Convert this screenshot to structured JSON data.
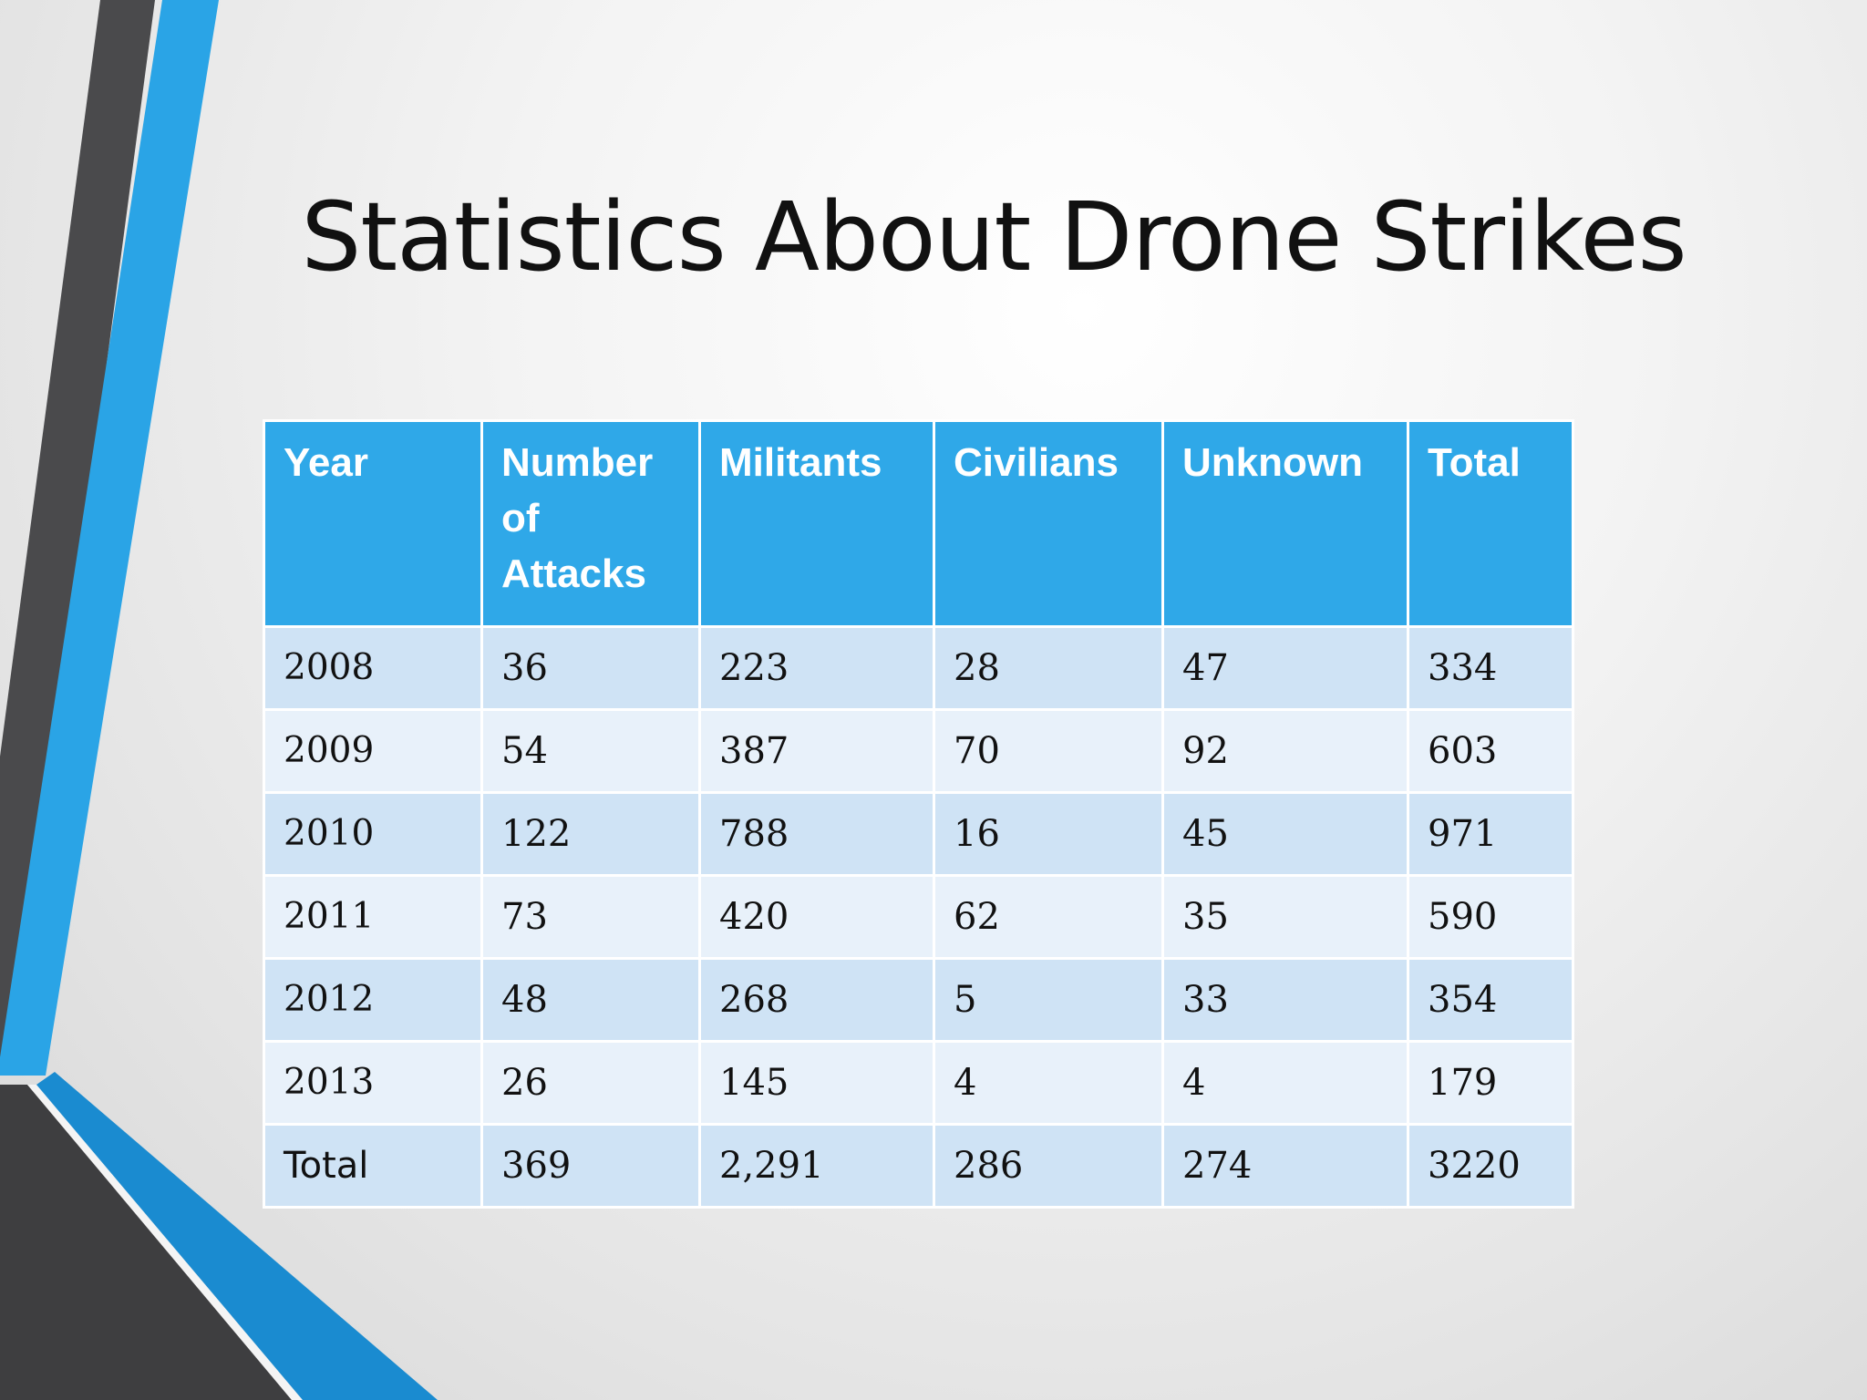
{
  "slide": {
    "title": "Statistics About Drone Strikes",
    "colors": {
      "accent_blue": "#2fa8e8",
      "dark_gray": "#3e3e40",
      "row_light": "#cfe3f5",
      "row_lighter": "#e8f1fa"
    }
  },
  "table": {
    "headers": [
      "Year",
      "Number of Attacks",
      "Militants",
      "Civilians",
      "Unknown",
      "Total"
    ],
    "rows": [
      [
        "2008",
        "36",
        "223",
        "28",
        "47",
        "334"
      ],
      [
        "2009",
        "54",
        "387",
        "70",
        "92",
        "603"
      ],
      [
        "2010",
        "122",
        "788",
        "16",
        "45",
        "971"
      ],
      [
        "2011",
        "73",
        "420",
        "62",
        "35",
        "590"
      ],
      [
        "2012",
        "48",
        "268",
        "5",
        "33",
        "354"
      ],
      [
        "2013",
        "26",
        "145",
        "4",
        "4",
        "179"
      ],
      [
        "Total",
        "369",
        "2,291",
        "286",
        "274",
        "3220"
      ]
    ]
  }
}
